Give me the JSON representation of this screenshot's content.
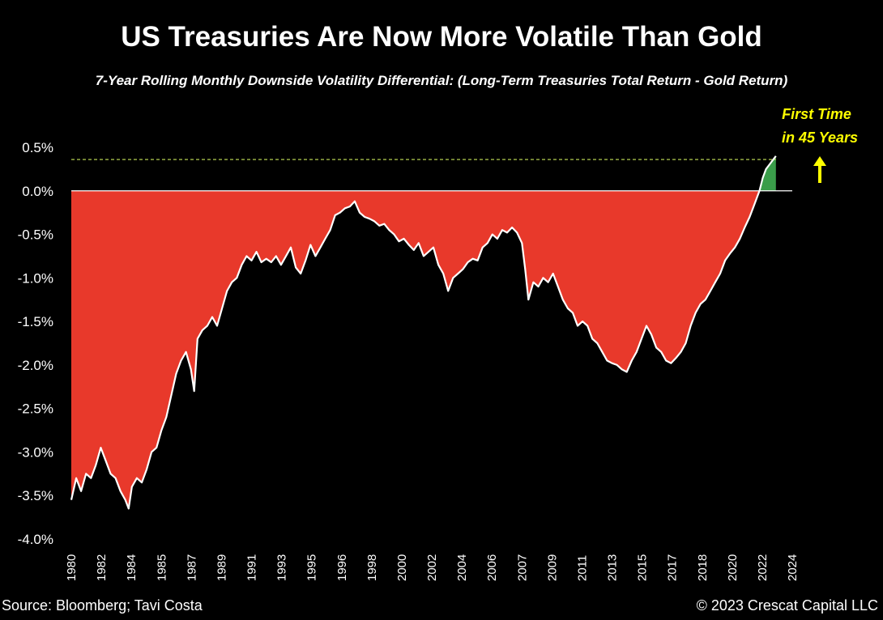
{
  "chart_data": {
    "type": "area",
    "title": "US Treasuries Are Now More Volatile Than Gold",
    "subtitle": "7-Year Rolling Monthly Downside Volatility Differential: (Long-Term Treasuries Total Return - Gold Return)",
    "xlabel": "",
    "ylabel": "",
    "ylim": [
      -4.0,
      0.5
    ],
    "xlim": [
      1980.0,
      2024.0
    ],
    "y_ticks": [
      "0.5%",
      "0.0%",
      "-0.5%",
      "-1.0%",
      "-1.5%",
      "-2.0%",
      "-2.5%",
      "-3.0%",
      "-3.5%",
      "-4.0%"
    ],
    "y_tick_values": [
      0.5,
      0.0,
      -0.5,
      -1.0,
      -1.5,
      -2.0,
      -2.5,
      -3.0,
      -3.5,
      -4.0
    ],
    "x_ticks": [
      "1980",
      "1982",
      "1984",
      "1985",
      "1987",
      "1989",
      "1991",
      "1993",
      "1995",
      "1996",
      "1998",
      "2000",
      "2002",
      "2004",
      "2006",
      "2007",
      "2009",
      "2011",
      "2013",
      "2015",
      "2017",
      "2018",
      "2020",
      "2022",
      "2024"
    ],
    "x_tick_values": [
      1980.0,
      1981.83,
      1983.67,
      1985.5,
      1987.33,
      1989.17,
      1991.0,
      1992.83,
      1994.67,
      1996.5,
      1998.33,
      2000.17,
      2002.0,
      2003.83,
      2005.67,
      2007.5,
      2009.33,
      2011.17,
      2013.0,
      2014.83,
      2016.67,
      2018.5,
      2020.33,
      2022.17,
      2024.0
    ],
    "series": [
      {
        "name": "",
        "negative_color": "#e8392b",
        "positive_color": "#3a9d4a",
        "line_color": "#ffffff",
        "points": [
          [
            1980.0,
            -3.55
          ],
          [
            1980.3,
            -3.3
          ],
          [
            1980.6,
            -3.45
          ],
          [
            1980.9,
            -3.25
          ],
          [
            1981.2,
            -3.3
          ],
          [
            1981.5,
            -3.15
          ],
          [
            1981.8,
            -2.95
          ],
          [
            1982.1,
            -3.1
          ],
          [
            1982.4,
            -3.25
          ],
          [
            1982.7,
            -3.3
          ],
          [
            1983.0,
            -3.45
          ],
          [
            1983.3,
            -3.55
          ],
          [
            1983.5,
            -3.65
          ],
          [
            1983.7,
            -3.4
          ],
          [
            1984.0,
            -3.3
          ],
          [
            1984.3,
            -3.35
          ],
          [
            1984.6,
            -3.2
          ],
          [
            1984.9,
            -3.0
          ],
          [
            1985.2,
            -2.95
          ],
          [
            1985.5,
            -2.75
          ],
          [
            1985.8,
            -2.6
          ],
          [
            1986.1,
            -2.35
          ],
          [
            1986.4,
            -2.1
          ],
          [
            1986.7,
            -1.95
          ],
          [
            1987.0,
            -1.85
          ],
          [
            1987.3,
            -2.05
          ],
          [
            1987.5,
            -2.3
          ],
          [
            1987.7,
            -1.7
          ],
          [
            1988.0,
            -1.6
          ],
          [
            1988.3,
            -1.55
          ],
          [
            1988.6,
            -1.45
          ],
          [
            1988.9,
            -1.55
          ],
          [
            1989.2,
            -1.35
          ],
          [
            1989.5,
            -1.15
          ],
          [
            1989.8,
            -1.05
          ],
          [
            1990.1,
            -1.0
          ],
          [
            1990.4,
            -0.85
          ],
          [
            1990.7,
            -0.75
          ],
          [
            1991.0,
            -0.8
          ],
          [
            1991.3,
            -0.7
          ],
          [
            1991.6,
            -0.82
          ],
          [
            1991.9,
            -0.78
          ],
          [
            1992.2,
            -0.82
          ],
          [
            1992.5,
            -0.75
          ],
          [
            1992.8,
            -0.85
          ],
          [
            1993.1,
            -0.75
          ],
          [
            1993.4,
            -0.65
          ],
          [
            1993.7,
            -0.88
          ],
          [
            1994.0,
            -0.95
          ],
          [
            1994.3,
            -0.8
          ],
          [
            1994.6,
            -0.62
          ],
          [
            1994.9,
            -0.75
          ],
          [
            1995.2,
            -0.65
          ],
          [
            1995.5,
            -0.55
          ],
          [
            1995.8,
            -0.45
          ],
          [
            1996.1,
            -0.28
          ],
          [
            1996.4,
            -0.25
          ],
          [
            1996.7,
            -0.2
          ],
          [
            1997.0,
            -0.18
          ],
          [
            1997.3,
            -0.12
          ],
          [
            1997.6,
            -0.25
          ],
          [
            1997.9,
            -0.3
          ],
          [
            1998.2,
            -0.32
          ],
          [
            1998.5,
            -0.35
          ],
          [
            1998.8,
            -0.4
          ],
          [
            1999.1,
            -0.38
          ],
          [
            1999.4,
            -0.45
          ],
          [
            1999.7,
            -0.5
          ],
          [
            2000.0,
            -0.58
          ],
          [
            2000.3,
            -0.55
          ],
          [
            2000.6,
            -0.62
          ],
          [
            2000.9,
            -0.68
          ],
          [
            2001.2,
            -0.6
          ],
          [
            2001.5,
            -0.75
          ],
          [
            2001.8,
            -0.7
          ],
          [
            2002.1,
            -0.65
          ],
          [
            2002.4,
            -0.85
          ],
          [
            2002.7,
            -0.95
          ],
          [
            2003.0,
            -1.15
          ],
          [
            2003.3,
            -1.0
          ],
          [
            2003.6,
            -0.95
          ],
          [
            2003.9,
            -0.9
          ],
          [
            2004.2,
            -0.82
          ],
          [
            2004.5,
            -0.78
          ],
          [
            2004.8,
            -0.8
          ],
          [
            2005.1,
            -0.65
          ],
          [
            2005.4,
            -0.6
          ],
          [
            2005.7,
            -0.5
          ],
          [
            2006.0,
            -0.55
          ],
          [
            2006.3,
            -0.45
          ],
          [
            2006.6,
            -0.48
          ],
          [
            2006.9,
            -0.42
          ],
          [
            2007.2,
            -0.48
          ],
          [
            2007.5,
            -0.6
          ],
          [
            2007.7,
            -0.9
          ],
          [
            2007.9,
            -1.25
          ],
          [
            2008.2,
            -1.05
          ],
          [
            2008.5,
            -1.1
          ],
          [
            2008.8,
            -1.0
          ],
          [
            2009.1,
            -1.05
          ],
          [
            2009.4,
            -0.95
          ],
          [
            2009.7,
            -1.1
          ],
          [
            2010.0,
            -1.25
          ],
          [
            2010.3,
            -1.35
          ],
          [
            2010.6,
            -1.4
          ],
          [
            2010.9,
            -1.55
          ],
          [
            2011.2,
            -1.5
          ],
          [
            2011.5,
            -1.55
          ],
          [
            2011.8,
            -1.7
          ],
          [
            2012.1,
            -1.75
          ],
          [
            2012.4,
            -1.85
          ],
          [
            2012.7,
            -1.95
          ],
          [
            2013.0,
            -1.98
          ],
          [
            2013.3,
            -2.0
          ],
          [
            2013.6,
            -2.05
          ],
          [
            2013.9,
            -2.08
          ],
          [
            2014.2,
            -1.95
          ],
          [
            2014.5,
            -1.85
          ],
          [
            2014.8,
            -1.7
          ],
          [
            2015.1,
            -1.55
          ],
          [
            2015.4,
            -1.65
          ],
          [
            2015.7,
            -1.8
          ],
          [
            2016.0,
            -1.85
          ],
          [
            2016.3,
            -1.95
          ],
          [
            2016.6,
            -1.98
          ],
          [
            2016.9,
            -1.92
          ],
          [
            2017.2,
            -1.85
          ],
          [
            2017.5,
            -1.75
          ],
          [
            2017.8,
            -1.55
          ],
          [
            2018.1,
            -1.4
          ],
          [
            2018.4,
            -1.3
          ],
          [
            2018.7,
            -1.25
          ],
          [
            2019.0,
            -1.15
          ],
          [
            2019.3,
            -1.05
          ],
          [
            2019.6,
            -0.95
          ],
          [
            2019.9,
            -0.8
          ],
          [
            2020.2,
            -0.72
          ],
          [
            2020.5,
            -0.65
          ],
          [
            2020.8,
            -0.55
          ],
          [
            2021.1,
            -0.42
          ],
          [
            2021.4,
            -0.3
          ],
          [
            2021.7,
            -0.15
          ],
          [
            2022.0,
            0.0
          ],
          [
            2022.2,
            0.15
          ],
          [
            2022.4,
            0.25
          ],
          [
            2022.6,
            0.3
          ],
          [
            2022.8,
            0.35
          ],
          [
            2023.0,
            0.4
          ]
        ]
      }
    ],
    "reference_line": {
      "value": 0.36,
      "style": "dashed",
      "color": "#c8e65a"
    },
    "annotation": {
      "lines": [
        "First Time",
        "in 45 Years"
      ],
      "color": "#ffff00",
      "arrow": "up"
    },
    "grid": false,
    "legend": "none"
  },
  "footer": {
    "source": "Source: Bloomberg; Tavi Costa",
    "copyright": "© 2023 Crescat Capital LLC"
  }
}
